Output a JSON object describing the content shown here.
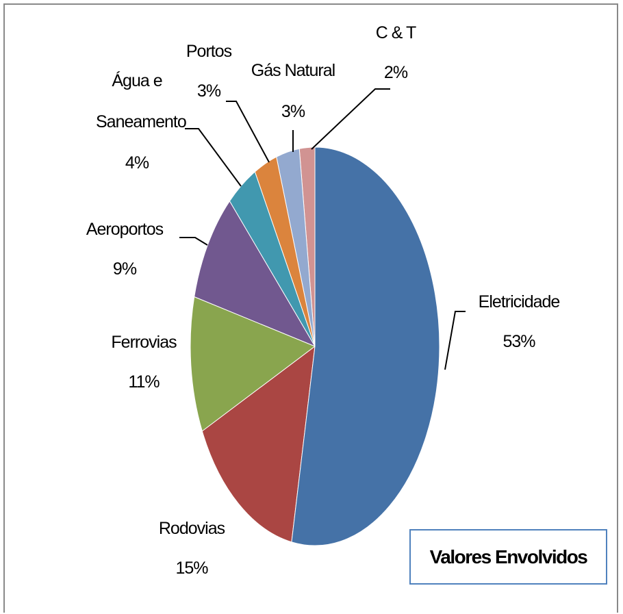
{
  "chart_data": {
    "type": "pie",
    "title": "Valores Envolvidos",
    "categories": [
      "Eletricidade",
      "Rodovias",
      "Ferrovias",
      "Aeroportos",
      "Água e Saneamento",
      "Portos",
      "Gás Natural",
      "C & T"
    ],
    "values": [
      53,
      15,
      11,
      9,
      4,
      3,
      3,
      2
    ],
    "value_labels": [
      "53%",
      "15%",
      "11%",
      "9%",
      "4%",
      "3%",
      "3%",
      "2%"
    ],
    "colors": [
      "#4572a7",
      "#aa4643",
      "#89a54e",
      "#71588f",
      "#4198af",
      "#db843d",
      "#93a9cf",
      "#d19392"
    ]
  }
}
